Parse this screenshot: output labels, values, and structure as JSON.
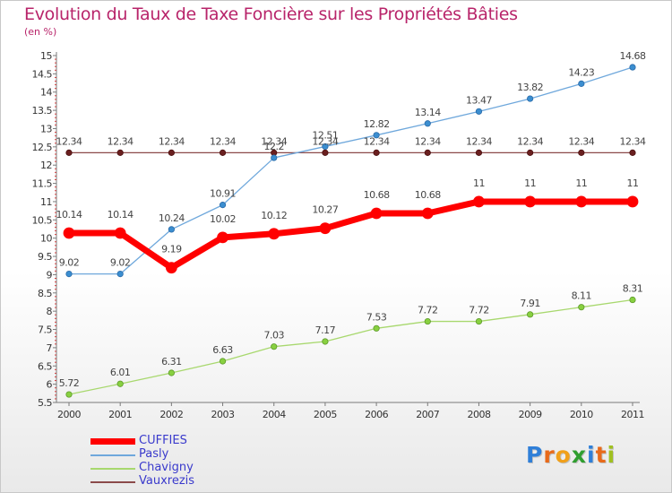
{
  "chart_data": {
    "type": "line",
    "title": "Evolution du Taux de Taxe Foncière sur les Propriétés Bâties",
    "subtitle": "(en %)",
    "xlabel": "",
    "ylabel": "(en %)",
    "x": [
      "2000",
      "2001",
      "2002",
      "2003",
      "2004",
      "2005",
      "2006",
      "2007",
      "2008",
      "2009",
      "2010",
      "2011"
    ],
    "ylim": [
      5.5,
      15
    ],
    "yticks": [
      "5.5",
      "6",
      "6.5",
      "7",
      "7.5",
      "8",
      "8.5",
      "9",
      "9.5",
      "10",
      "10.5",
      "11",
      "11.5",
      "12",
      "12.5",
      "13",
      "13.5",
      "14",
      "14.5",
      "15"
    ],
    "series": [
      {
        "name": "CUFFIES",
        "color": "#ff0000",
        "values": [
          10.14,
          10.14,
          9.19,
          10.02,
          10.12,
          10.27,
          10.68,
          10.68,
          11,
          11,
          11,
          11
        ],
        "labels": [
          "10.14",
          "10.14",
          "9.19",
          "10.02",
          "10.12",
          "10.27",
          "10.68",
          "10.68",
          "11",
          "11",
          "11",
          "11"
        ]
      },
      {
        "name": "Pasly",
        "color": "#6fa8dc",
        "values": [
          9.02,
          9.02,
          10.24,
          10.91,
          12.2,
          12.51,
          12.82,
          13.14,
          13.47,
          13.82,
          14.23,
          14.68
        ],
        "labels": [
          "9.02",
          "9.02",
          "10.24",
          "10.91",
          "12.2",
          "12.51",
          "12.82",
          "13.14",
          "13.47",
          "13.82",
          "14.23",
          "14.68"
        ]
      },
      {
        "name": "Chavigny",
        "color": "#a8d86e",
        "values": [
          5.72,
          6.01,
          6.31,
          6.63,
          7.03,
          7.17,
          7.53,
          7.72,
          7.72,
          7.91,
          8.11,
          8.31
        ],
        "labels": [
          "5.72",
          "6.01",
          "6.31",
          "6.63",
          "7.03",
          "7.17",
          "7.53",
          "7.72",
          "7.72",
          "7.91",
          "8.11",
          "8.31"
        ]
      },
      {
        "name": "Vauxrezis",
        "color": "#8b4a4a",
        "values": [
          12.34,
          12.34,
          12.34,
          12.34,
          12.34,
          12.34,
          12.34,
          12.34,
          12.34,
          12.34,
          12.34,
          12.34
        ],
        "labels": [
          "12.34",
          "12.34",
          "12.34",
          "12.34",
          "12.34",
          "12.34",
          "12.34",
          "12.34",
          "12.34",
          "12.34",
          "12.34",
          "12.34"
        ]
      }
    ],
    "grid": false,
    "legend_position": "bottom-left"
  },
  "legend": {
    "items": [
      {
        "label": "CUFFIES"
      },
      {
        "label": "Pasly"
      },
      {
        "label": "Chavigny"
      },
      {
        "label": "Vauxrezis"
      }
    ]
  },
  "logo": {
    "letters": [
      "P",
      "r",
      "o",
      "x",
      "i",
      "t",
      "i"
    ],
    "colors": [
      "#2f7fd8",
      "#e86a1a",
      "#f1a01a",
      "#2f9e2f",
      "#2f7fd8",
      "#e86a1a",
      "#a0c020"
    ]
  }
}
